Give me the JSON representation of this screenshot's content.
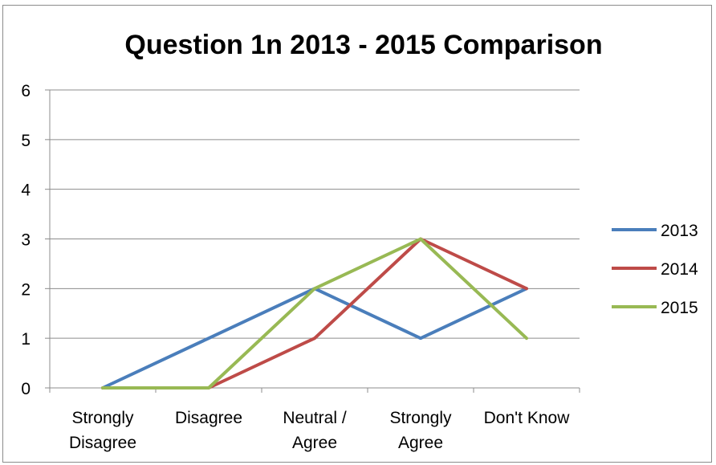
{
  "chart_data": {
    "type": "line",
    "title": "Question 1n 2013 - 2015 Comparison",
    "xlabel": "",
    "ylabel": "",
    "categories": [
      [
        "Strongly",
        "Disagree"
      ],
      [
        "Disagree"
      ],
      [
        "Neutral /",
        "Agree"
      ],
      [
        "Strongly",
        "Agree"
      ],
      [
        "Don't Know"
      ]
    ],
    "ylim": [
      0,
      6
    ],
    "yticks": [
      0,
      1,
      2,
      3,
      4,
      5,
      6
    ],
    "grid": true,
    "legend_position": "right",
    "series": [
      {
        "name": "2013",
        "color": "#4a7ebb",
        "values": [
          0,
          1,
          2,
          1,
          2
        ]
      },
      {
        "name": "2014",
        "color": "#be4b48",
        "values": [
          0,
          0,
          1,
          3,
          2
        ]
      },
      {
        "name": "2015",
        "color": "#98b954",
        "values": [
          0,
          0,
          2,
          3,
          1
        ]
      }
    ]
  }
}
